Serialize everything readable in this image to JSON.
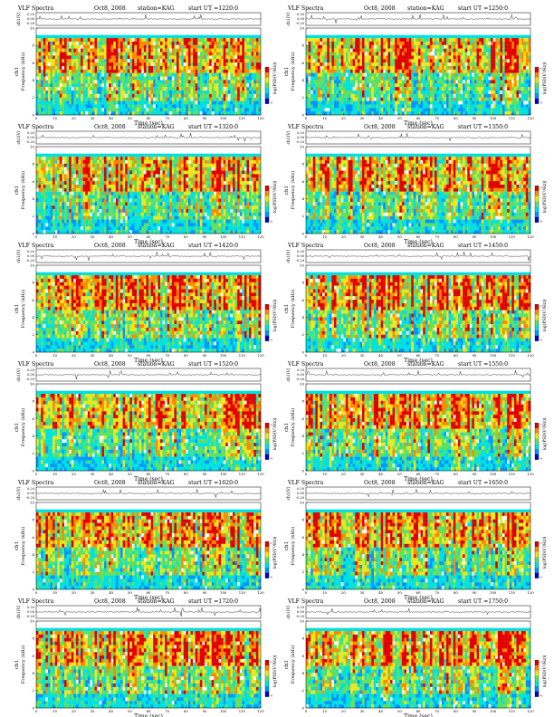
{
  "figure": {
    "header_title": "VLF Spectra",
    "header_date": "Oct8, 2008",
    "header_station": "station=KAG",
    "series_channel": "ch1",
    "waveform_ylabel": "ch1(V)",
    "waveform_ticks": [
      "0.20",
      "0.00",
      "-0.20"
    ],
    "spec_ylabel_channel": "ch1",
    "spec_ylabel": "Frequency (kHz)",
    "spec_yticks": [
      "10",
      "8",
      "6",
      "4",
      "2",
      "0"
    ],
    "xlabel": "Time (sec)",
    "colorbar_label": "log(PSD(V²/Hz))",
    "colorbar_ticks": [
      "-1",
      "-4"
    ]
  },
  "colors": {
    "spectrogram_scale": [
      "#0000c8",
      "#0096ff",
      "#00e0e0",
      "#60e060",
      "#e8e820",
      "#ff8800",
      "#e00000",
      "#ffffff"
    ],
    "background": "#ffffff"
  },
  "chart_data": [
    {
      "type": "heatmap",
      "panel": "left-1",
      "ut_label": "start UT =1220:0",
      "x": [
        0,
        10,
        20,
        30,
        40,
        50,
        60,
        70,
        80,
        90,
        100,
        110,
        120
      ],
      "xlim": [
        0,
        120
      ],
      "ylim": [
        0,
        10
      ],
      "colorbar_range": [
        -4,
        -1
      ]
    },
    {
      "type": "heatmap",
      "panel": "right-1",
      "ut_label": "start UT =1250:0",
      "x": [
        0,
        10,
        20,
        30,
        40,
        50,
        60,
        70,
        80,
        90,
        100,
        110,
        120
      ],
      "xlim": [
        0,
        120
      ],
      "ylim": [
        0,
        10
      ],
      "colorbar_range": [
        -4,
        -1
      ]
    },
    {
      "type": "heatmap",
      "panel": "left-2",
      "ut_label": "start UT =1320:0",
      "x": [
        0,
        10,
        20,
        30,
        40,
        50,
        60,
        70,
        80,
        90,
        100,
        110,
        120
      ],
      "xlim": [
        0,
        120
      ],
      "ylim": [
        0,
        10
      ],
      "colorbar_range": [
        -4,
        -1
      ]
    },
    {
      "type": "heatmap",
      "panel": "right-2",
      "ut_label": "start UT =1350:0",
      "x": [
        0,
        10,
        20,
        30,
        40,
        50,
        60,
        70,
        80,
        90,
        100,
        110,
        120
      ],
      "xlim": [
        0,
        120
      ],
      "ylim": [
        0,
        10
      ],
      "colorbar_range": [
        -4,
        -1
      ]
    },
    {
      "type": "heatmap",
      "panel": "left-3",
      "ut_label": "start UT =1420:0",
      "x": [
        0,
        10,
        20,
        30,
        40,
        50,
        60,
        70,
        80,
        90,
        100,
        110,
        120
      ],
      "xlim": [
        0,
        120
      ],
      "ylim": [
        0,
        10
      ],
      "colorbar_range": [
        -4,
        -1
      ]
    },
    {
      "type": "heatmap",
      "panel": "right-3",
      "ut_label": "start UT =1450:0",
      "x": [
        0,
        10,
        20,
        30,
        40,
        50,
        60,
        70,
        80,
        90,
        100,
        110,
        120
      ],
      "xlim": [
        0,
        120
      ],
      "ylim": [
        0,
        10
      ],
      "colorbar_range": [
        -4,
        -1
      ]
    },
    {
      "type": "heatmap",
      "panel": "left-4",
      "ut_label": "start UT =1520:0",
      "x": [
        0,
        10,
        20,
        30,
        40,
        50,
        60,
        70,
        80,
        90,
        100,
        110,
        120
      ],
      "xlim": [
        0,
        120
      ],
      "ylim": [
        0,
        10
      ],
      "colorbar_range": [
        -4,
        -1
      ]
    },
    {
      "type": "heatmap",
      "panel": "right-4",
      "ut_label": "start UT =1550:0",
      "x": [
        0,
        10,
        20,
        30,
        40,
        50,
        60,
        70,
        80,
        90,
        100,
        110,
        120
      ],
      "xlim": [
        0,
        120
      ],
      "ylim": [
        0,
        10
      ],
      "colorbar_range": [
        -4,
        -1
      ]
    },
    {
      "type": "heatmap",
      "panel": "left-5",
      "ut_label": "start UT =1620:0",
      "x": [
        0,
        10,
        20,
        30,
        40,
        50,
        60,
        70,
        80,
        90,
        100,
        110,
        120
      ],
      "xlim": [
        0,
        120
      ],
      "ylim": [
        0,
        10
      ],
      "colorbar_range": [
        -4,
        -1
      ]
    },
    {
      "type": "heatmap",
      "panel": "right-5",
      "ut_label": "start UT =1650:0",
      "x": [
        0,
        10,
        20,
        30,
        40,
        50,
        60,
        70,
        80,
        90,
        100,
        110,
        120
      ],
      "xlim": [
        0,
        120
      ],
      "ylim": [
        0,
        10
      ],
      "colorbar_range": [
        -4,
        -1
      ]
    },
    {
      "type": "heatmap",
      "panel": "left-6",
      "ut_label": "start UT =1720:0",
      "x": [
        0,
        10,
        20,
        30,
        40,
        50,
        60,
        70,
        80,
        90,
        100,
        110,
        120
      ],
      "xlim": [
        0,
        120
      ],
      "ylim": [
        0,
        10
      ],
      "colorbar_range": [
        -4,
        -1
      ]
    },
    {
      "type": "heatmap",
      "panel": "right-6",
      "ut_label": "start UT =1750:0",
      "x": [
        0,
        10,
        20,
        30,
        40,
        50,
        60,
        70,
        80,
        90,
        100,
        110,
        120
      ],
      "xlim": [
        0,
        120
      ],
      "ylim": [
        0,
        10
      ],
      "colorbar_range": [
        -4,
        -1
      ]
    }
  ]
}
